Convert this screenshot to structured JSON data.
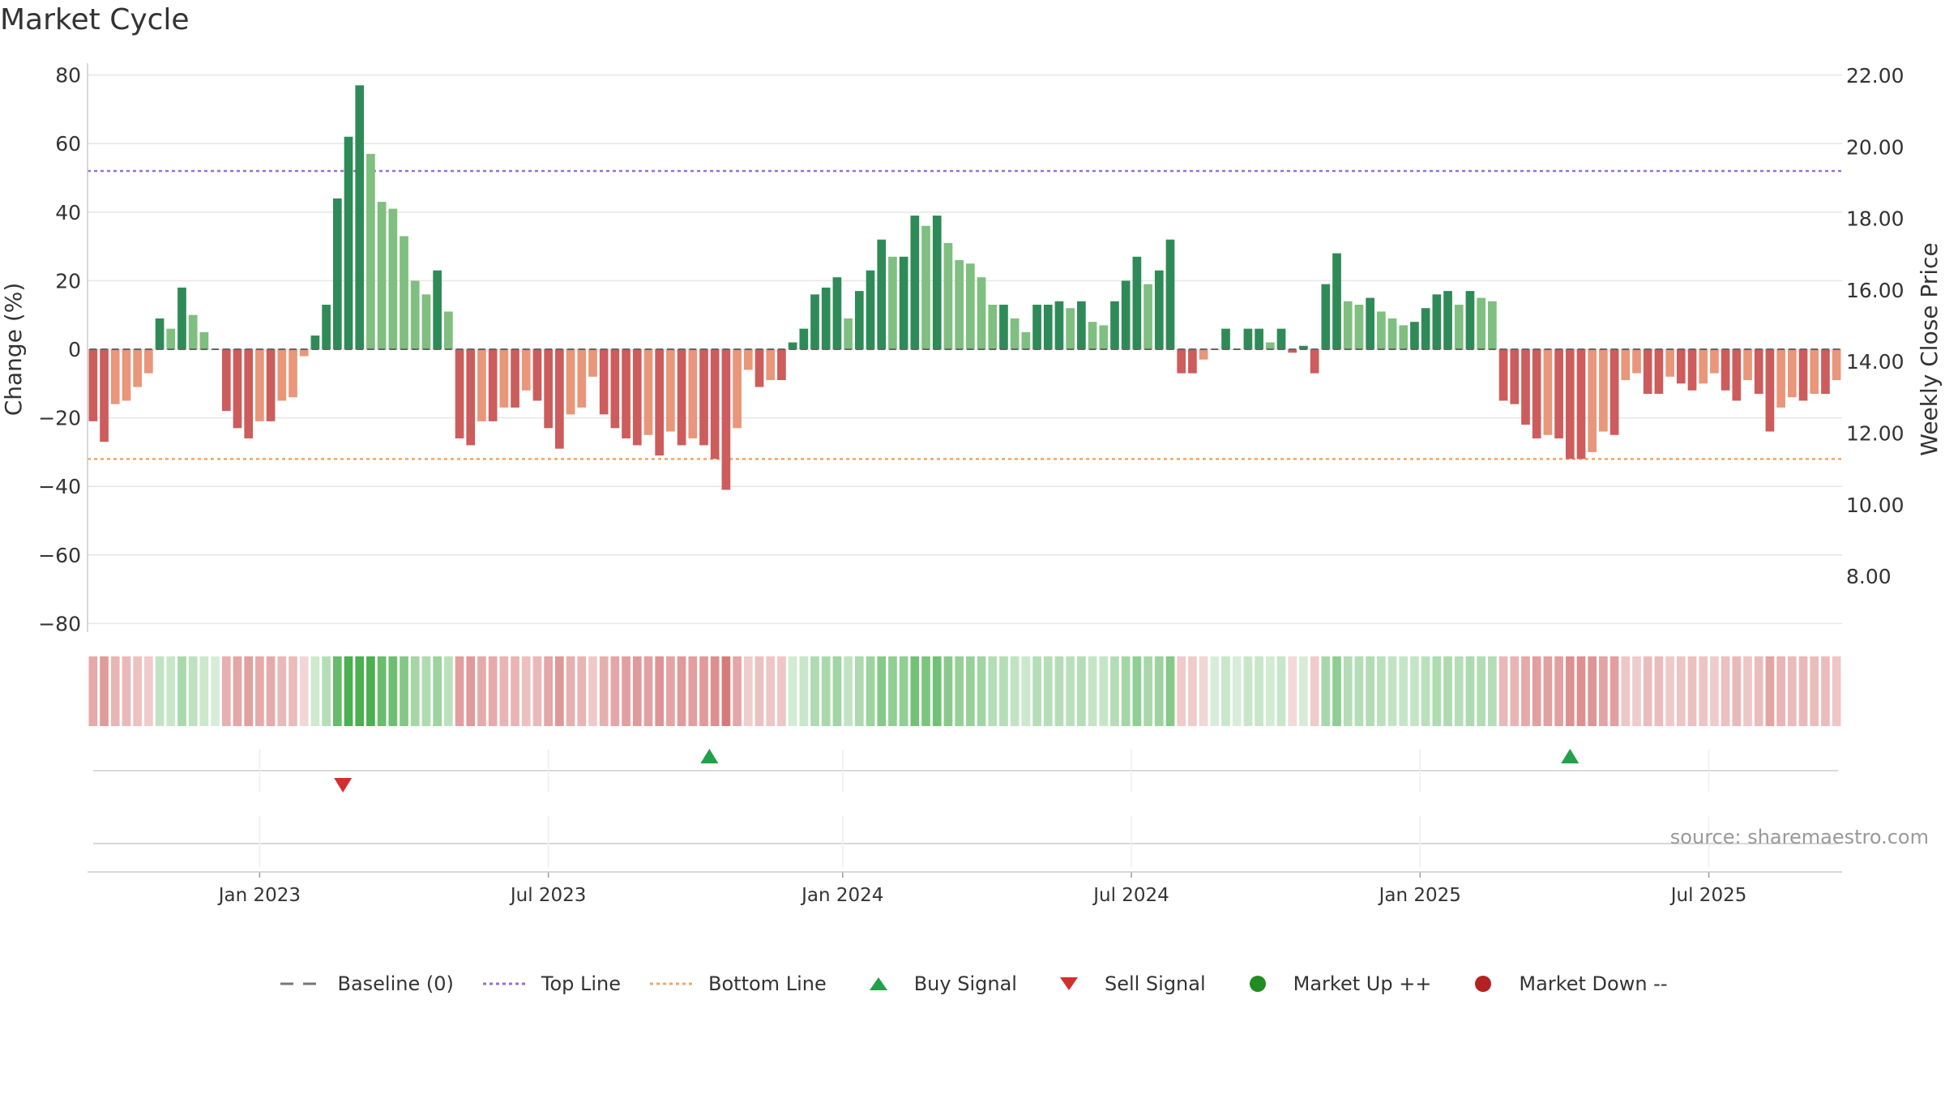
{
  "chart_data": {
    "type": "bar",
    "title": "Market Cycle",
    "ylabel_left": "Change (%)",
    "ylabel_right": "Weekly Close Price",
    "ylim_left": [
      -82,
      82
    ],
    "yticks_left": [
      "80",
      "60",
      "40",
      "20",
      "0",
      "−20",
      "−40",
      "−60",
      "−80"
    ],
    "yticks_right": [
      "22.00",
      "20.00",
      "18.00",
      "16.00",
      "14.00",
      "12.00",
      "10.00",
      "8.00"
    ],
    "top_line": 52,
    "bottom_line": -32,
    "x_ticks": [
      {
        "label": "Jan 2023",
        "index": 15
      },
      {
        "label": "Jul 2023",
        "index": 41
      },
      {
        "label": "Jan 2024",
        "index": 67.5
      },
      {
        "label": "Jul 2024",
        "index": 93.5
      },
      {
        "label": "Jan 2025",
        "index": 119.5
      },
      {
        "label": "Jul 2025",
        "index": 145.5
      }
    ],
    "values": [
      -21,
      -27,
      -16,
      -15,
      -11,
      -7,
      9,
      6,
      18,
      10,
      5,
      0,
      -18,
      -23,
      -26,
      -21,
      -21,
      -15,
      -14,
      -2,
      4,
      13,
      44,
      62,
      77,
      57,
      43,
      41,
      33,
      20,
      16,
      23,
      11,
      -26,
      -28,
      -21,
      -21,
      -17,
      -17,
      -12,
      -15,
      -23,
      -29,
      -19,
      -17,
      -8,
      -19,
      -23,
      -26,
      -28,
      -25,
      -31,
      -24,
      -28,
      -26,
      -28,
      -32,
      -41,
      -23,
      -6,
      -11,
      -9,
      -9,
      2,
      6,
      16,
      18,
      21,
      9,
      17,
      23,
      32,
      27,
      27,
      39,
      36,
      39,
      31,
      26,
      25,
      21,
      13,
      13,
      9,
      5,
      13,
      13,
      14,
      12,
      14,
      8,
      7,
      14,
      20,
      27,
      19,
      23,
      32,
      -7,
      -7,
      -3,
      0,
      6,
      0,
      6,
      6,
      2,
      6,
      -1,
      1,
      -7,
      19,
      28,
      14,
      13,
      15,
      11,
      9,
      7,
      8,
      12,
      16,
      17,
      13,
      17,
      15,
      14,
      -15,
      -16,
      -22,
      -26,
      -25,
      -26,
      -32,
      -32,
      -30,
      -24,
      -25,
      -9,
      -7,
      -13,
      -13,
      -8,
      -10,
      -12,
      -10,
      -7,
      -12,
      -15,
      -9,
      -13,
      -24,
      -17,
      -14,
      -15,
      -13,
      -13,
      -9
    ],
    "signals": [
      {
        "type": "sell",
        "index": 22.5
      },
      {
        "type": "buy",
        "index": 55.5
      },
      {
        "type": "buy",
        "index": 133
      }
    ],
    "colors": {
      "up_strong": "#2e8b57",
      "up_weak": "#7fbf7f",
      "down_strong": "#cd5c5c",
      "down_weak": "#e9967a",
      "top_line": "#9370db",
      "bottom_line": "#f4a460",
      "buy": "#22a04b",
      "sell": "#d32f2f",
      "market_up": "#228b22",
      "market_down": "#b22222"
    },
    "source": "source: sharemaestro.com",
    "legend": [
      {
        "label": "Baseline (0)",
        "symbol": "dash-line",
        "color": "#777777"
      },
      {
        "label": "Top Line",
        "symbol": "dotted-line",
        "color": "#9370db"
      },
      {
        "label": "Bottom Line",
        "symbol": "dotted-line",
        "color": "#f4a460"
      },
      {
        "label": "Buy Signal",
        "symbol": "triangle-up",
        "color": "#22a04b"
      },
      {
        "label": "Sell Signal",
        "symbol": "triangle-down",
        "color": "#d32f2f"
      },
      {
        "label": "Market Up ++",
        "symbol": "circle",
        "color": "#228b22"
      },
      {
        "label": "Market Down --",
        "symbol": "circle",
        "color": "#b22222"
      }
    ]
  }
}
